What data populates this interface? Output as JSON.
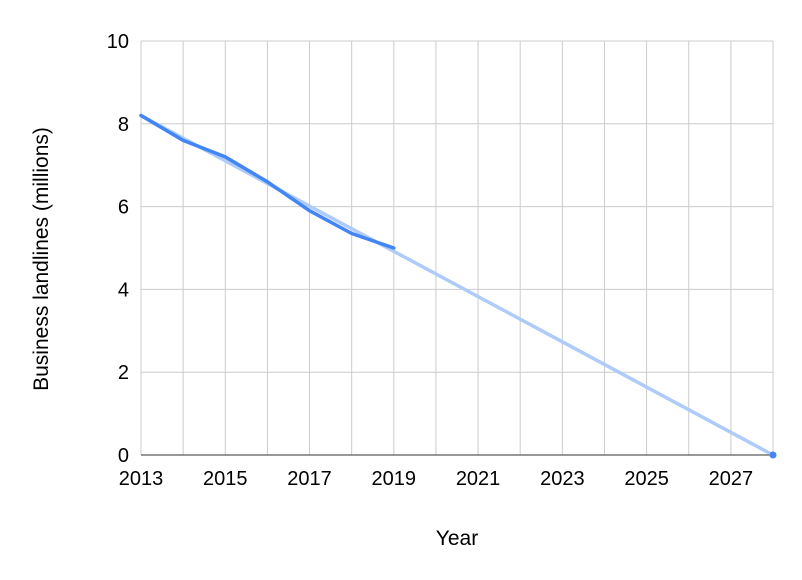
{
  "chart_data": {
    "type": "line",
    "title": "",
    "xlabel": "Year",
    "ylabel": "Business landlines (millions)",
    "xlim": [
      2013,
      2028
    ],
    "ylim": [
      0,
      10
    ],
    "x_ticks": [
      2013,
      2015,
      2017,
      2019,
      2021,
      2023,
      2025,
      2027
    ],
    "y_ticks": [
      0,
      2,
      4,
      6,
      8,
      10
    ],
    "grid": true,
    "legend": "none",
    "series": [
      {
        "color": "#4285f4",
        "x": [
          2013,
          2014,
          2015,
          2016,
          2017,
          2018,
          2019
        ],
        "y": [
          8.2,
          7.6,
          7.2,
          6.6,
          5.9,
          5.35,
          5.0
        ]
      },
      {
        "color": "#aecbfa",
        "x": [
          2013,
          2028
        ],
        "y": [
          8.2,
          0
        ]
      }
    ]
  }
}
